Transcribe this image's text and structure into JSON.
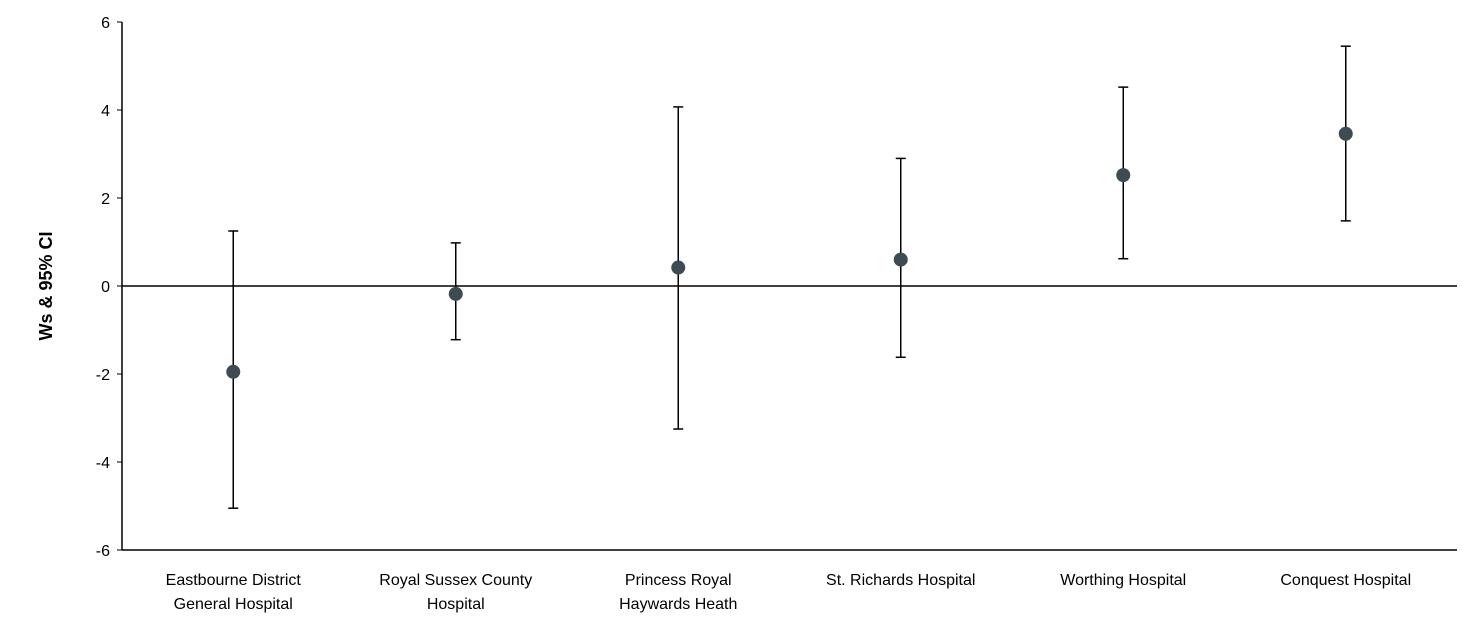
{
  "chart_data": {
    "type": "scatter",
    "title": "",
    "xlabel": "",
    "ylabel": "Ws & 95% CI",
    "ylim": [
      -6,
      6
    ],
    "yticks": [
      -6,
      -4,
      -2,
      0,
      2,
      4,
      6
    ],
    "grid": false,
    "legend": "none",
    "categories": [
      [
        "Eastbourne District",
        "General Hospital"
      ],
      [
        "Royal  Sussex County",
        "Hospital"
      ],
      [
        "Princess Royal",
        "Haywards Heath"
      ],
      [
        "St. Richards Hospital"
      ],
      [
        "Worthing Hospital"
      ],
      [
        "Conquest Hospital"
      ]
    ],
    "values": [
      -1.95,
      -0.18,
      0.42,
      0.6,
      2.52,
      3.46
    ],
    "ci_lower": [
      -5.05,
      -1.22,
      -3.25,
      -1.62,
      0.62,
      1.48
    ],
    "ci_upper": [
      1.25,
      0.98,
      4.07,
      2.9,
      4.52,
      5.45
    ],
    "colors": {
      "marker": "#3d4c53",
      "errorbar": "#000000",
      "axis": "#000000"
    }
  }
}
